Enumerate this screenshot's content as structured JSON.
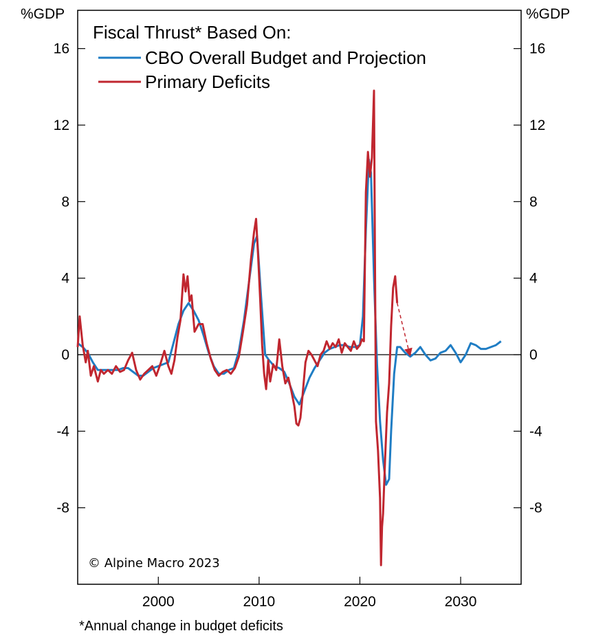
{
  "chart_data": {
    "type": "line",
    "unit_label_left": "%GDP",
    "unit_label_right": "%GDP",
    "legend_title": "Fiscal Thrust* Based On:",
    "copyright": "© Alpine Macro 2023",
    "footnote": "*Annual change in budget deficits",
    "xlim": [
      1992,
      2036
    ],
    "ylim": [
      -12,
      18
    ],
    "x_ticks": [
      2000,
      2010,
      2020,
      2030
    ],
    "y_ticks": [
      16,
      12,
      8,
      4,
      0,
      -4,
      -8
    ],
    "y_tick_labels": [
      "16",
      "12",
      "8",
      "4",
      "0",
      "-4",
      "-8"
    ],
    "x_tick_labels": [
      "2000",
      "2010",
      "2020",
      "2030"
    ],
    "grid": false,
    "zero_line": true,
    "legend_position": "top-left",
    "series": [
      {
        "name": "CBO Overall Budget and Projection",
        "color": "#1f7dc4",
        "x": [
          1992.0,
          1992.5,
          1993.0,
          1993.5,
          1994.0,
          1994.5,
          1995.0,
          1995.5,
          1996.0,
          1996.5,
          1997.0,
          1997.5,
          1998.0,
          1998.5,
          1999.0,
          1999.5,
          2000.0,
          2000.5,
          2001.0,
          2001.5,
          2002.0,
          2002.5,
          2003.0,
          2003.5,
          2004.0,
          2004.5,
          2005.0,
          2005.5,
          2006.0,
          2006.5,
          2007.0,
          2007.5,
          2008.0,
          2008.5,
          2009.0,
          2009.5,
          2009.8,
          2010.2,
          2010.6,
          2011.0,
          2011.5,
          2012.0,
          2012.5,
          2013.0,
          2013.5,
          2014.0,
          2014.5,
          2015.0,
          2015.5,
          2016.0,
          2016.5,
          2017.0,
          2017.5,
          2018.0,
          2018.5,
          2019.0,
          2019.5,
          2020.0,
          2020.3,
          2020.6,
          2020.9,
          2021.1,
          2021.4,
          2021.7,
          2022.0,
          2022.3,
          2022.6,
          2022.9,
          2023.1,
          2023.4,
          2023.7,
          2024.0,
          2024.5,
          2025.0,
          2025.5,
          2026.0,
          2026.5,
          2027.0,
          2027.5,
          2028.0,
          2028.5,
          2029.0,
          2029.5,
          2030.0,
          2030.5,
          2031.0,
          2031.5,
          2032.0,
          2032.5,
          2033.0,
          2033.5,
          2034.0
        ],
        "values": [
          0.6,
          0.4,
          0.1,
          -0.4,
          -0.8,
          -0.8,
          -0.8,
          -0.8,
          -0.8,
          -0.7,
          -0.7,
          -0.9,
          -1.1,
          -1.1,
          -0.9,
          -0.7,
          -0.6,
          -0.5,
          -0.4,
          0.6,
          1.6,
          2.3,
          2.7,
          2.3,
          1.8,
          1.0,
          0.1,
          -0.6,
          -1.0,
          -1.0,
          -0.8,
          -0.7,
          0.2,
          1.8,
          3.8,
          5.8,
          6.2,
          3.0,
          0.0,
          -0.3,
          -0.6,
          -0.7,
          -0.9,
          -1.5,
          -2.2,
          -2.6,
          -1.9,
          -1.2,
          -0.7,
          -0.3,
          0.1,
          0.3,
          0.4,
          0.5,
          0.5,
          0.4,
          0.4,
          0.5,
          2.0,
          6.5,
          10.2,
          9.5,
          4.0,
          -0.5,
          -3.5,
          -5.5,
          -6.8,
          -6.5,
          -4.0,
          -1.0,
          0.4,
          0.4,
          0.1,
          -0.1,
          0.1,
          0.4,
          0.0,
          -0.3,
          -0.2,
          0.1,
          0.2,
          0.5,
          0.1,
          -0.4,
          0.0,
          0.6,
          0.5,
          0.3,
          0.3,
          0.4,
          0.5,
          0.7
        ]
      },
      {
        "name": "Primary Deficits",
        "color": "#c0262f",
        "x": [
          1992.0,
          1992.2,
          1992.5,
          1992.8,
          1993.0,
          1993.3,
          1993.6,
          1994.0,
          1994.3,
          1994.6,
          1995.0,
          1995.4,
          1995.8,
          1996.2,
          1996.6,
          1997.0,
          1997.4,
          1997.8,
          1998.2,
          1998.6,
          1999.0,
          1999.4,
          1999.8,
          2000.2,
          2000.6,
          2001.0,
          2001.3,
          2001.6,
          2001.9,
          2002.2,
          2002.5,
          2002.7,
          2002.9,
          2003.1,
          2003.3,
          2003.6,
          2004.0,
          2004.4,
          2004.8,
          2005.2,
          2005.6,
          2006.0,
          2006.4,
          2006.8,
          2007.2,
          2007.6,
          2008.0,
          2008.4,
          2008.8,
          2009.2,
          2009.5,
          2009.7,
          2009.9,
          2010.1,
          2010.3,
          2010.5,
          2010.7,
          2010.9,
          2011.1,
          2011.4,
          2011.7,
          2012.0,
          2012.3,
          2012.6,
          2012.9,
          2013.2,
          2013.5,
          2013.7,
          2013.9,
          2014.1,
          2014.3,
          2014.6,
          2014.9,
          2015.2,
          2015.5,
          2015.8,
          2016.1,
          2016.4,
          2016.7,
          2017.0,
          2017.3,
          2017.6,
          2017.9,
          2018.2,
          2018.5,
          2018.8,
          2019.1,
          2019.4,
          2019.7,
          2020.0,
          2020.2,
          2020.4,
          2020.6,
          2020.8,
          2021.0,
          2021.2,
          2021.4,
          2021.5,
          2021.6,
          2021.8,
          2022.0,
          2022.1,
          2022.2,
          2022.3,
          2022.5,
          2022.7,
          2022.9,
          2023.1,
          2023.3,
          2023.5,
          2023.7
        ],
        "values": [
          0.4,
          2.0,
          0.5,
          -0.4,
          0.2,
          -1.1,
          -0.6,
          -1.4,
          -0.8,
          -1.0,
          -0.8,
          -1.0,
          -0.6,
          -0.9,
          -0.8,
          -0.3,
          0.1,
          -0.8,
          -1.3,
          -1.0,
          -0.8,
          -0.6,
          -1.1,
          -0.5,
          0.2,
          -0.6,
          -1.0,
          -0.3,
          0.9,
          1.8,
          4.2,
          3.3,
          4.1,
          2.8,
          3.1,
          1.2,
          1.6,
          1.6,
          0.6,
          -0.2,
          -0.8,
          -1.1,
          -0.9,
          -0.8,
          -1.0,
          -0.7,
          -0.1,
          1.2,
          2.6,
          5.0,
          6.4,
          7.1,
          5.2,
          3.0,
          0.5,
          -1.0,
          -1.8,
          -0.3,
          -1.4,
          -0.5,
          -0.8,
          0.8,
          -0.6,
          -1.5,
          -1.2,
          -1.9,
          -2.7,
          -3.6,
          -3.7,
          -3.3,
          -2.2,
          -0.4,
          0.2,
          0.0,
          -0.3,
          -0.6,
          0.0,
          0.2,
          0.7,
          0.3,
          0.6,
          0.4,
          0.8,
          0.1,
          0.6,
          0.4,
          0.2,
          0.7,
          0.3,
          0.5,
          0.8,
          0.7,
          8.5,
          10.6,
          9.3,
          10.3,
          13.8,
          5.0,
          -3.5,
          -5.0,
          -7.5,
          -11.0,
          -9.0,
          -8.3,
          -5.5,
          -3.0,
          -1.5,
          1.5,
          3.5,
          4.1,
          2.7
        ]
      }
    ],
    "annotation_arrow": {
      "from": [
        2023.7,
        2.7
      ],
      "to": [
        2025.0,
        -0.1
      ],
      "style": "dashed",
      "color": "#c0262f"
    }
  }
}
